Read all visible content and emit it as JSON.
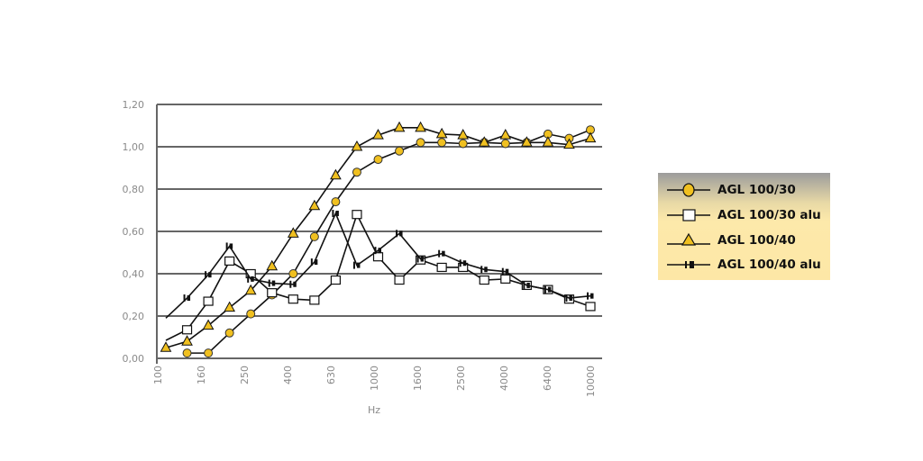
{
  "chart_data": {
    "type": "line",
    "title": "",
    "xlabel": "Hz",
    "ylabel": "",
    "ylim": [
      0,
      1.2
    ],
    "yticks": [
      "0,00",
      "0,20",
      "0,40",
      "0,60",
      "0,80",
      "1,00",
      "1,20"
    ],
    "ytick_values": [
      0,
      0.2,
      0.4,
      0.6,
      0.8,
      1.0,
      1.2
    ],
    "xtick_labels": [
      "100",
      "160",
      "250",
      "400",
      "630",
      "1000",
      "1600",
      "2500",
      "4000",
      "6400",
      "10000"
    ],
    "x": [
      100,
      125,
      160,
      200,
      250,
      315,
      400,
      500,
      630,
      800,
      1000,
      1250,
      1600,
      2000,
      2500,
      3150,
      4000,
      5000,
      6300,
      8000,
      10000
    ],
    "grid": "horizontal",
    "legend_placement": "right",
    "series": [
      {
        "name": "AGL 100/30",
        "marker": "circle",
        "color": "#f0c020",
        "values": [
          null,
          0.025,
          0.025,
          0.12,
          0.21,
          0.3,
          0.4,
          0.575,
          0.74,
          0.88,
          0.94,
          0.98,
          1.02,
          1.02,
          1.015,
          1.02,
          1.015,
          1.02,
          1.06,
          1.04,
          1.08
        ]
      },
      {
        "name": "AGL 100/30 alu",
        "marker": "square",
        "color": "#ffffff",
        "values": [
          0.085,
          0.135,
          0.27,
          0.46,
          0.4,
          0.31,
          0.28,
          0.275,
          0.37,
          0.68,
          0.48,
          0.37,
          0.465,
          0.43,
          0.43,
          0.37,
          0.375,
          0.345,
          0.325,
          0.28,
          0.245
        ]
      },
      {
        "name": "AGL 100/40",
        "marker": "triangle",
        "color": "#f0c020",
        "values": [
          0.05,
          0.08,
          0.155,
          0.24,
          0.32,
          0.435,
          0.59,
          0.72,
          0.865,
          1.0,
          1.055,
          1.09,
          1.09,
          1.06,
          1.055,
          1.02,
          1.055,
          1.02,
          1.02,
          1.01,
          1.04
        ]
      },
      {
        "name": "AGL 100/40 alu",
        "marker": "tick",
        "color": "#111111",
        "values": [
          0.19,
          0.285,
          0.395,
          0.53,
          0.375,
          0.355,
          0.35,
          0.455,
          0.685,
          0.44,
          0.51,
          0.59,
          0.47,
          0.495,
          0.45,
          0.42,
          0.41,
          0.345,
          0.325,
          0.285,
          0.295
        ]
      }
    ]
  },
  "colors": {
    "grid": "#666666",
    "axis_text": "#8a8a8a",
    "marker_fill": "#f0c020",
    "line": "#111111"
  }
}
